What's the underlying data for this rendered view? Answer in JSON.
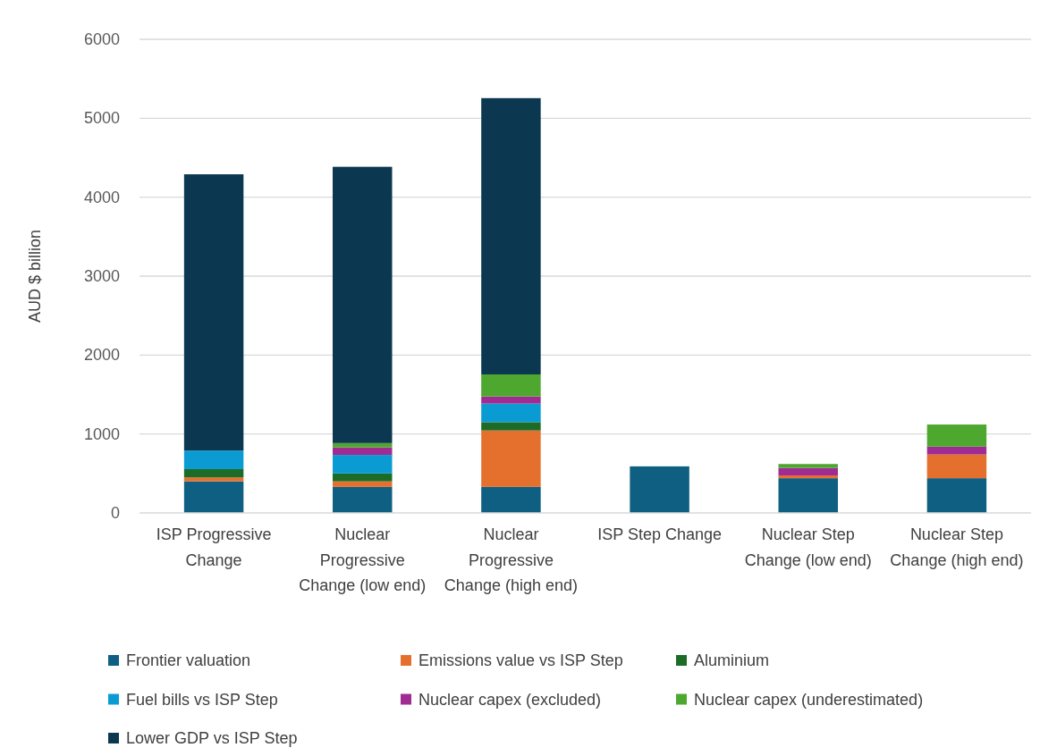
{
  "chart_data": {
    "type": "bar",
    "stacked": true,
    "ylabel": "AUD $ billion",
    "categories": [
      "ISP Progressive Change",
      "Nuclear Progressive Change (low end)",
      "Nuclear Progressive Change (high end)",
      "ISP Step Change",
      "Nuclear Step Change (low end)",
      "Nuclear Step Change (high end)"
    ],
    "series": [
      {
        "name": "Frontier valuation",
        "color": "#0f5f82",
        "values": [
          400,
          330,
          330,
          590,
          440,
          440
        ]
      },
      {
        "name": "Emissions value vs ISP Step",
        "color": "#e5702d",
        "values": [
          50,
          70,
          715,
          null,
          35,
          300
        ]
      },
      {
        "name": "Aluminium",
        "color": "#1c6b26",
        "values": [
          105,
          100,
          105,
          null,
          null,
          null
        ]
      },
      {
        "name": "Fuel bills vs ISP Step",
        "color": "#0b9bd3",
        "values": [
          235,
          235,
          235,
          null,
          null,
          null
        ]
      },
      {
        "name": "Nuclear capex (excluded)",
        "color": "#a02b93",
        "values": [
          null,
          95,
          90,
          null,
          95,
          100
        ]
      },
      {
        "name": "Nuclear capex (underestimated)",
        "color": "#4ea72e",
        "values": [
          null,
          55,
          280,
          null,
          50,
          280
        ]
      },
      {
        "name": "Lower GDP vs ISP Step",
        "color": "#0b3750",
        "values": [
          3500,
          3500,
          3500,
          null,
          null,
          null
        ]
      }
    ],
    "ylim": [
      0,
      6000
    ],
    "yticks": [
      0,
      1000,
      2000,
      3000,
      4000,
      5000,
      6000
    ],
    "grid": "y",
    "legend": "bottom"
  }
}
